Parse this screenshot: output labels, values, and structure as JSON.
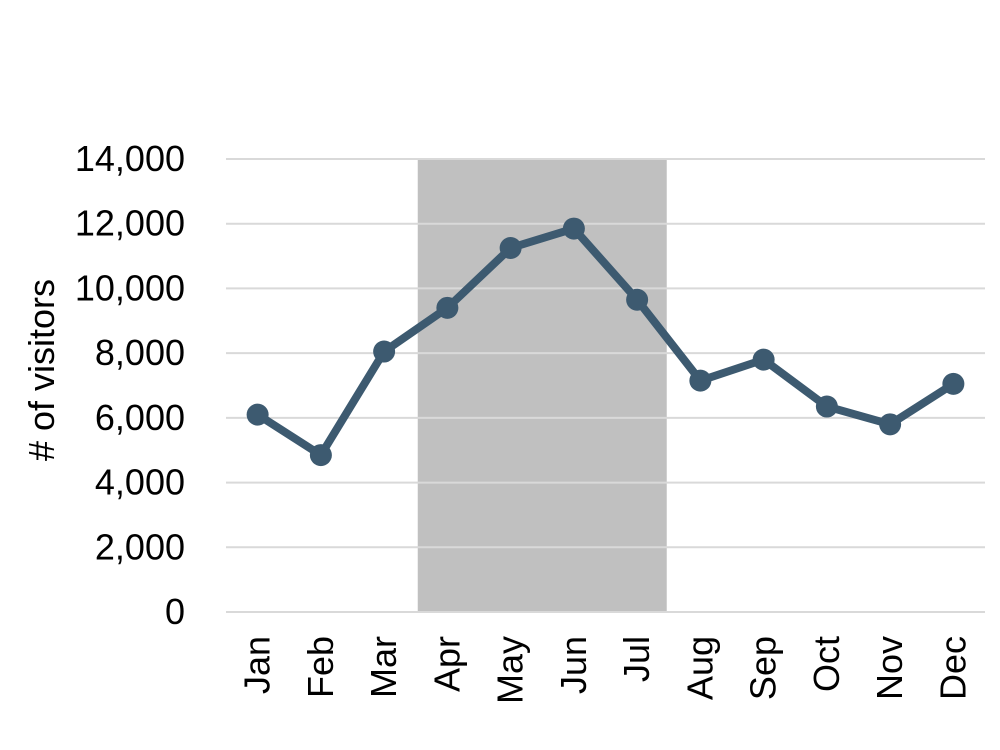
{
  "chart_data": {
    "type": "line",
    "title": "",
    "xlabel": "",
    "ylabel": "# of visitors",
    "categories": [
      "Jan",
      "Feb",
      "Mar",
      "Apr",
      "May",
      "Jun",
      "Jul",
      "Aug",
      "Sep",
      "Oct",
      "Nov",
      "Dec"
    ],
    "series": [
      {
        "values": [
          6100,
          4850,
          8050,
          9400,
          11250,
          11850,
          9650,
          7150,
          7800,
          6350,
          5800,
          7050
        ]
      }
    ],
    "ylim": [
      0,
      14000
    ],
    "yticks": [
      0,
      2000,
      4000,
      6000,
      8000,
      10000,
      12000,
      14000
    ],
    "ytick_labels": [
      "0",
      "2,000",
      "4,000",
      "6,000",
      "8,000",
      "10,000",
      "12,000",
      "14,000"
    ],
    "highlight_range": {
      "from": "Apr",
      "to": "Jul"
    },
    "grid": true,
    "legend": "none",
    "colors": {
      "line": "#3d5a70",
      "marker": "#3d5a70",
      "highlight": "#c0c0c0",
      "grid": "#d9d9d9"
    }
  }
}
